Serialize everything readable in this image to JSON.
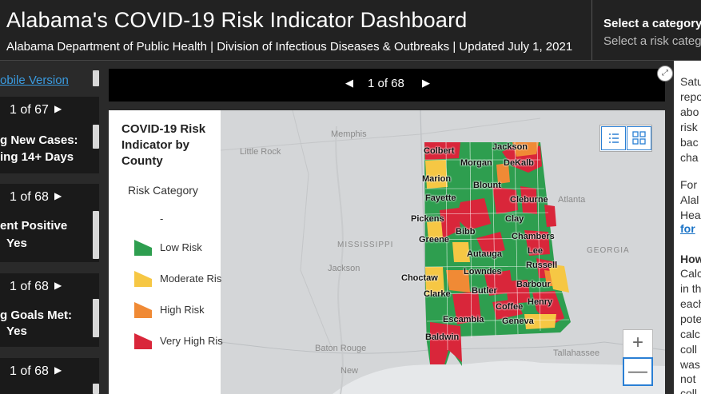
{
  "header": {
    "title": "Alabama's COVID-19 Risk Indicator Dashboard",
    "subtitle": "Alabama Department of Public Health | Division of Infectious Diseases & Outbreaks | Updated July 1, 2021",
    "category_title": "Select a category",
    "category_sub": "Select a risk categ"
  },
  "left": {
    "mobile_link": "obile Version",
    "cards": [
      {
        "pager": "1 of 67",
        "line1": "g New Cases:",
        "line2": "ing 14+ Days",
        "value": ""
      },
      {
        "pager": "1 of 68",
        "line1": "ent Positive",
        "line2": "",
        "value": "Yes"
      },
      {
        "pager": "1 of 68",
        "line1": "g Goals Met:",
        "line2": "",
        "value": "Yes"
      },
      {
        "pager": "1 of 68",
        "line1": "",
        "line2": "",
        "value": ""
      }
    ]
  },
  "pager": {
    "prev": "◀",
    "count": "1 of 68",
    "next": "▶"
  },
  "legend": {
    "title": "COVID-19 Risk Indicator by County",
    "category": "Risk Category",
    "dash": "-",
    "items": [
      {
        "label": "Low Risk",
        "color": "#2e9e4f"
      },
      {
        "label": "Moderate Ris",
        "color": "#f6c744"
      },
      {
        "label": "High Risk",
        "color": "#f08a35"
      },
      {
        "label": "Very High Ris",
        "color": "#d9263a"
      }
    ]
  },
  "map": {
    "places": [
      "Little Rock",
      "Memphis",
      "MISSISSIPPI",
      "Jackson",
      "Baton Rouge",
      "New",
      "Atlanta",
      "GEORGIA",
      "Tallahassee"
    ],
    "counties": [
      "Colbert",
      "Jackson",
      "Morgan",
      "DeKalb",
      "Marion",
      "Blount",
      "Fayette",
      "Cleburne",
      "Pickens",
      "Clay",
      "Bibb",
      "Chambers",
      "Greene",
      "Lee",
      "Autauga",
      "Russell",
      "Choctaw",
      "Lowndes",
      "Barbour",
      "Clarke",
      "Butler",
      "Henry",
      "Coffee",
      "Escambia",
      "Geneva",
      "Baldwin"
    ],
    "zoom_in": "+",
    "zoom_out": "—"
  },
  "right": {
    "lines": [
      "Satu",
      "repo",
      "abo",
      "risk",
      "bac",
      "cha",
      "For",
      "Alal",
      "Hea",
      "for",
      "How",
      "Calc",
      "in th",
      "each",
      "pote",
      "calc",
      "coll",
      "was",
      "not",
      "coll"
    ]
  }
}
